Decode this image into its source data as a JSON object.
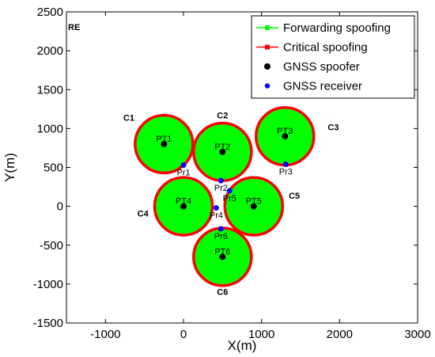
{
  "chart_data": {
    "type": "scatter",
    "xlabel": "X(m)",
    "ylabel": "Y(m)",
    "xlim": [
      -1500,
      3000
    ],
    "ylim": [
      -1500,
      2500
    ],
    "xticks": [
      -1000,
      0,
      1000,
      2000,
      3000
    ],
    "yticks": [
      -1500,
      -1000,
      -500,
      0,
      500,
      1000,
      1500,
      2000,
      2500
    ],
    "grid": false,
    "corner_label": "RE",
    "circle_radius": 370,
    "colors": {
      "fill": "#00ff00",
      "ring": "#ff0000",
      "spoofer": "#000000",
      "receiver": "#0000ff"
    },
    "legend": {
      "placement": "top-right",
      "entries": [
        {
          "label": "Forwarding spoofing",
          "color": "#00ff00",
          "marker": "square-line"
        },
        {
          "label": "Critical spoofing",
          "color": "#ff0000",
          "marker": "square-line"
        },
        {
          "label": "GNSS spoofer",
          "color": "#000000",
          "marker": "dot"
        },
        {
          "label": "GNSS receiver",
          "color": "#0000ff",
          "marker": "hexagon"
        }
      ]
    },
    "regions": [
      {
        "label": "C1",
        "x": -250,
        "y": 800
      },
      {
        "label": "C2",
        "x": 500,
        "y": 700
      },
      {
        "label": "C3",
        "x": 1300,
        "y": 900
      },
      {
        "label": "C4",
        "x": 0,
        "y": 0
      },
      {
        "label": "C5",
        "x": 900,
        "y": 0
      },
      {
        "label": "C6",
        "x": 500,
        "y": -650
      }
    ],
    "region_label_positions": [
      {
        "label": "C1",
        "x": -700,
        "y": 1100
      },
      {
        "label": "C2",
        "x": 500,
        "y": 1130
      },
      {
        "label": "C3",
        "x": 1920,
        "y": 980
      },
      {
        "label": "C4",
        "x": -520,
        "y": -130
      },
      {
        "label": "C5",
        "x": 1420,
        "y": 100
      },
      {
        "label": "C6",
        "x": 500,
        "y": -1140
      }
    ],
    "spoofers": [
      {
        "label": "PT1",
        "x": -250,
        "y": 800
      },
      {
        "label": "PT2",
        "x": 500,
        "y": 700
      },
      {
        "label": "PT3",
        "x": 1300,
        "y": 900
      },
      {
        "label": "PT4",
        "x": 0,
        "y": 0
      },
      {
        "label": "PT5",
        "x": 900,
        "y": 0
      },
      {
        "label": "PT6",
        "x": 500,
        "y": -650
      }
    ],
    "receivers": [
      {
        "label": "Pr1",
        "x": 0,
        "y": 530
      },
      {
        "label": "Pr2",
        "x": 480,
        "y": 330
      },
      {
        "label": "Pr3",
        "x": 1310,
        "y": 540
      },
      {
        "label": "Pr4",
        "x": 420,
        "y": -20
      },
      {
        "label": "Pr5",
        "x": 590,
        "y": 200
      },
      {
        "label": "Pr6",
        "x": 480,
        "y": -290
      }
    ]
  }
}
